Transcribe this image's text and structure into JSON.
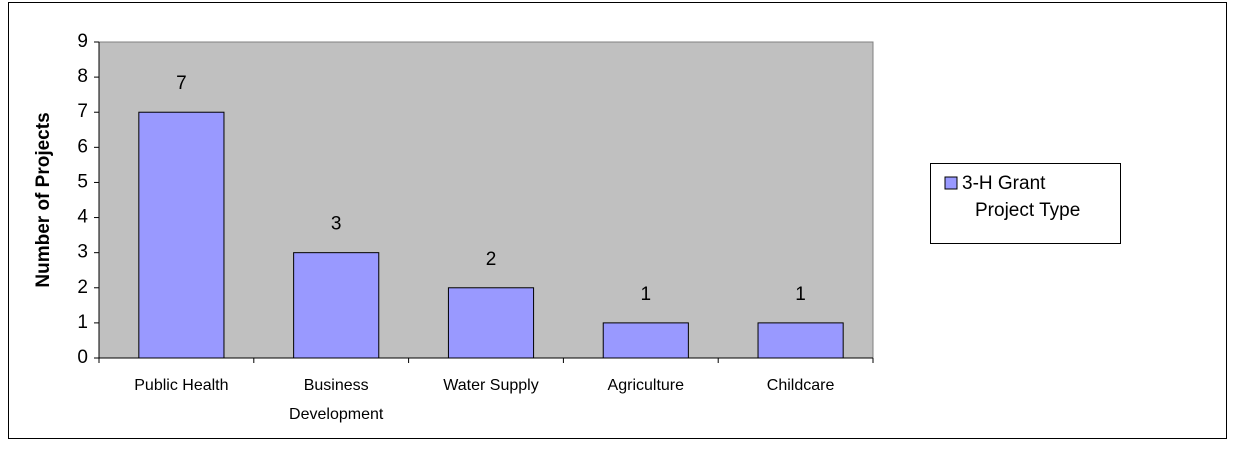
{
  "chart_data": {
    "type": "bar",
    "y_label": "Number of Projects",
    "categories": [
      "Public Health",
      "Business Development",
      "Water Supply",
      "Agriculture",
      "Childcare"
    ],
    "series": [
      {
        "name": "3-H Grant Project Type",
        "color": "#9999ff",
        "values": [
          7,
          3,
          2,
          1,
          1
        ]
      }
    ],
    "ylim": [
      0,
      9
    ],
    "yticks": [
      0,
      1,
      2,
      3,
      4,
      5,
      6,
      7,
      8,
      9
    ],
    "legend": "right",
    "plot_background": "#c0c0c0"
  }
}
